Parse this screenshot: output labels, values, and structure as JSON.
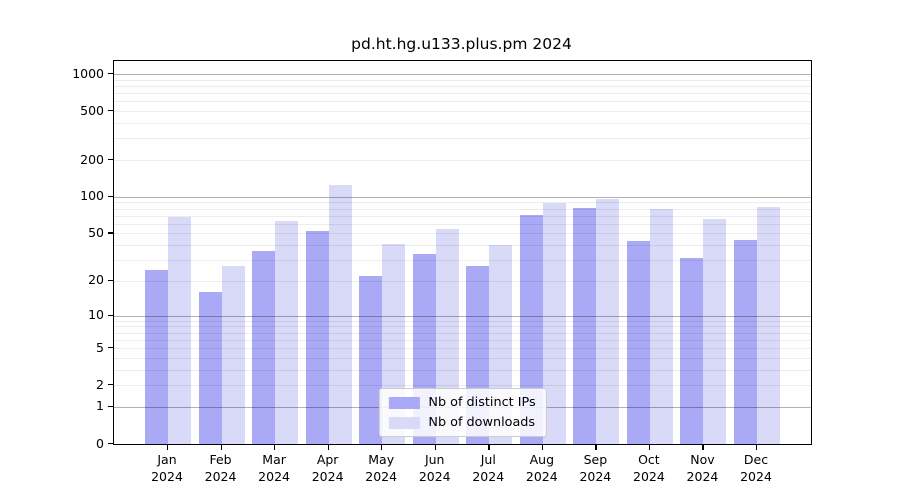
{
  "title": "pd.ht.hg.u133.plus.pm 2024",
  "chart_data": {
    "type": "bar",
    "title": "pd.ht.hg.u133.plus.pm 2024",
    "categories": [
      "Jan",
      "Feb",
      "Mar",
      "Apr",
      "May",
      "Jun",
      "Jul",
      "Aug",
      "Sep",
      "Oct",
      "Nov",
      "Dec"
    ],
    "category_year": "2024",
    "series": [
      {
        "name": "Nb of distinct IPs",
        "color": "#a9a9f5",
        "values": [
          25,
          16,
          36,
          52,
          22,
          34,
          27,
          71,
          81,
          43,
          31,
          44
        ]
      },
      {
        "name": "Nb of downloads",
        "color": "#d9d9f8",
        "values": [
          68,
          27,
          63,
          126,
          41,
          54,
          40,
          89,
          96,
          80,
          66,
          82
        ]
      }
    ],
    "xlabel": "",
    "ylabel": "",
    "yscale": "log10(value+1)",
    "ylim": [
      0,
      1280
    ],
    "ytick_values": [
      1000,
      500,
      200,
      100,
      50,
      20,
      10,
      5,
      2,
      1,
      0
    ],
    "ytick_labels": [
      "1000",
      "500",
      "200",
      "100",
      "50",
      "20",
      "10",
      "5",
      "2",
      "1",
      "0"
    ],
    "grid": "major decades dark, minor log steps light, drawn over bars",
    "legend_position": "lower center"
  },
  "legend": {
    "items": [
      {
        "label": "Nb of distinct IPs",
        "color": "#a9a9f5"
      },
      {
        "label": "Nb of downloads",
        "color": "#d9d9f8"
      }
    ]
  },
  "colors": {
    "bar_ips": "#a9a9f5",
    "bar_downloads": "#d9d9f8",
    "major_grid": "#b2b2b2",
    "minor_grid": "#ebebeb",
    "axis": "#000000",
    "background": "#ffffff",
    "legend_border": "#cccccc"
  }
}
